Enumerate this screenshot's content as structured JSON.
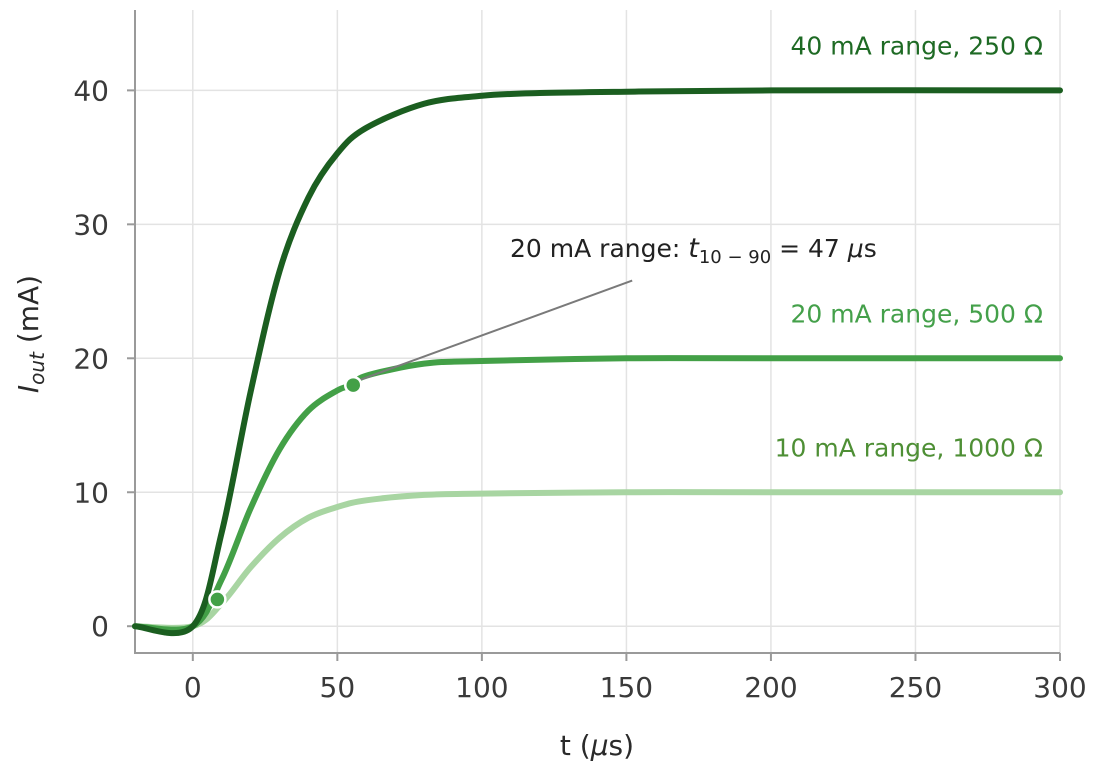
{
  "chart_data": {
    "type": "line",
    "xlabel_main": "t (",
    "xlabel_unit": "μs",
    "xlabel_end": ")",
    "ylabel_main": "I",
    "ylabel_sub": "out",
    "ylabel_unit": " (mA)",
    "xlim": [
      -20,
      300
    ],
    "ylim": [
      -2,
      46
    ],
    "xticks": [
      0,
      50,
      100,
      150,
      200,
      250,
      300
    ],
    "yticks": [
      0,
      10,
      20,
      30,
      40
    ],
    "grid": true,
    "series": [
      {
        "name": "10 mA range, 1000 Ω",
        "label_color": "#4e8f35",
        "line_color": "#a8d5a2",
        "final": 10,
        "x": [
          -20,
          0,
          10,
          20,
          30,
          40,
          50,
          60,
          80,
          100,
          150,
          200,
          300
        ],
        "y": [
          0,
          0,
          1.7,
          4.4,
          6.6,
          8.1,
          8.9,
          9.4,
          9.8,
          9.9,
          10,
          10,
          10
        ]
      },
      {
        "name": "20 mA range, 500 Ω",
        "label_color": "#44a04a",
        "line_color": "#43a047",
        "final": 20,
        "x": [
          -20,
          0,
          10,
          20,
          30,
          40,
          50,
          55,
          60,
          80,
          100,
          150,
          200,
          300
        ],
        "y": [
          0,
          0,
          3.5,
          8.8,
          13.2,
          16.1,
          17.6,
          18.0,
          18.7,
          19.6,
          19.8,
          20,
          20,
          20
        ]
      },
      {
        "name": "40 mA range, 250 Ω",
        "label_color": "#1e6a24",
        "line_color": "#1b5e20",
        "final": 40,
        "x": [
          -20,
          0,
          10,
          20,
          30,
          40,
          50,
          60,
          80,
          100,
          120,
          150,
          200,
          300
        ],
        "y": [
          0,
          0,
          7,
          17.5,
          26.5,
          32,
          35.3,
          37.2,
          39,
          39.6,
          39.8,
          39.9,
          40,
          40
        ]
      }
    ],
    "markers": [
      {
        "x": 8.5,
        "y": 2.0,
        "series": "20 mA range, 500 Ω"
      },
      {
        "x": 55.5,
        "y": 18.0,
        "series": "20 mA range, 500 Ω"
      }
    ],
    "annotation": {
      "prefix": "20 mA range: ",
      "var": "t",
      "sub": "10 − 90",
      "suffix_a": " = 47 ",
      "suffix_unit": "μs",
      "suffix_b": "s",
      "pointer_from": {
        "x": 152,
        "y": 25.8
      },
      "pointer_to": {
        "x": 58,
        "y": 18.4
      }
    }
  }
}
